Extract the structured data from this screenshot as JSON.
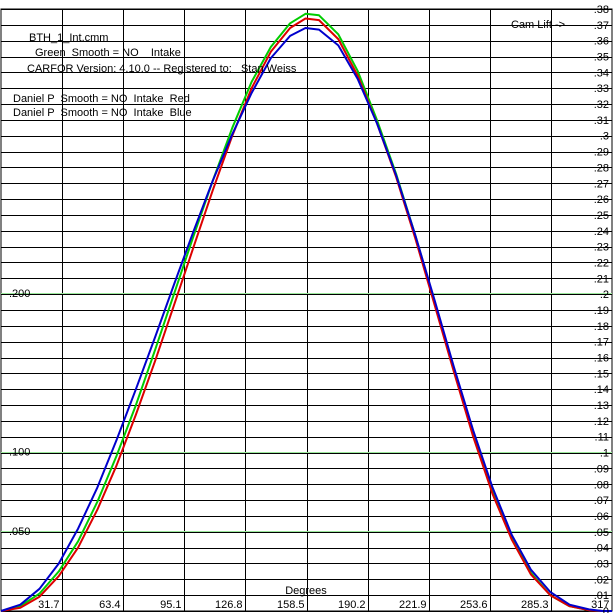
{
  "chart_data": {
    "type": "line",
    "xlabel": "Degrees",
    "right_axis_label": "Cam Lift ->",
    "x_tick_labels": [
      "31.7",
      "63.4",
      "95.1",
      "126.8",
      "158.5",
      "190.2",
      "221.9",
      "253.6",
      "285.3",
      "317"
    ],
    "xlim": [
      0,
      317
    ],
    "ylim": [
      0,
      0.38
    ],
    "right_ticks": [
      "0",
      ".01",
      ".02",
      ".03",
      ".04",
      ".05",
      ".06",
      ".07",
      ".08",
      ".09",
      ".1",
      ".11",
      ".12",
      ".13",
      ".14",
      ".15",
      ".16",
      ".17",
      ".18",
      ".19",
      ".2",
      ".21",
      ".22",
      ".23",
      ".24",
      ".25",
      ".26",
      ".27",
      ".28",
      ".29",
      ".3",
      ".31",
      ".32",
      ".33",
      ".34",
      ".35",
      ".36",
      ".37",
      ".38"
    ],
    "left_ticks": [
      {
        "value": 0.05,
        "label": ".050"
      },
      {
        "value": 0.1,
        "label": ".100"
      },
      {
        "value": 0.2,
        "label": ".200"
      }
    ],
    "grid": true,
    "info_lines": [
      "BTH_1_Int.cmm",
      "Green  Smooth = NO    Intake",
      "CARFOR Version: 4.10.0 -- Registered to:   Stan Weiss",
      "",
      "Daniel P  Smooth = NO  Intake  Red",
      "Daniel P  Smooth = NO  Intake  Blue"
    ],
    "series": [
      {
        "color": "#00cc00",
        "x": [
          0,
          10,
          20,
          30,
          40,
          50,
          60,
          70,
          80,
          90,
          100,
          110,
          120,
          130,
          140,
          150,
          158,
          165,
          175,
          185,
          195,
          205,
          215,
          225,
          235,
          245,
          255,
          265,
          275,
          285,
          295,
          305,
          312,
          317
        ],
        "y": [
          0,
          0.003,
          0.011,
          0.025,
          0.044,
          0.069,
          0.098,
          0.13,
          0.165,
          0.201,
          0.237,
          0.272,
          0.305,
          0.334,
          0.356,
          0.371,
          0.377,
          0.376,
          0.364,
          0.341,
          0.31,
          0.276,
          0.237,
          0.195,
          0.153,
          0.112,
          0.076,
          0.046,
          0.024,
          0.01,
          0.003,
          0.0005,
          0,
          0
        ]
      },
      {
        "color": "#dd0000",
        "x": [
          0,
          10,
          20,
          30,
          40,
          50,
          60,
          70,
          80,
          90,
          100,
          110,
          120,
          130,
          140,
          150,
          158,
          165,
          175,
          185,
          195,
          205,
          215,
          225,
          235,
          245,
          255,
          265,
          275,
          285,
          295,
          305,
          312,
          317
        ],
        "y": [
          0,
          0.002,
          0.009,
          0.022,
          0.04,
          0.064,
          0.092,
          0.124,
          0.158,
          0.194,
          0.23,
          0.266,
          0.3,
          0.33,
          0.353,
          0.368,
          0.374,
          0.373,
          0.361,
          0.338,
          0.308,
          0.274,
          0.235,
          0.193,
          0.151,
          0.11,
          0.074,
          0.045,
          0.023,
          0.01,
          0.003,
          0.0005,
          0,
          0
        ]
      },
      {
        "color": "#0000cc",
        "x": [
          0,
          10,
          20,
          30,
          40,
          50,
          60,
          70,
          80,
          90,
          100,
          110,
          120,
          130,
          140,
          150,
          158,
          165,
          175,
          185,
          195,
          205,
          215,
          225,
          235,
          245,
          255,
          265,
          275,
          285,
          295,
          305,
          312,
          317
        ],
        "y": [
          0,
          0.004,
          0.014,
          0.03,
          0.052,
          0.078,
          0.108,
          0.14,
          0.173,
          0.207,
          0.24,
          0.272,
          0.301,
          0.327,
          0.349,
          0.363,
          0.368,
          0.367,
          0.357,
          0.336,
          0.308,
          0.275,
          0.237,
          0.196,
          0.154,
          0.114,
          0.078,
          0.048,
          0.026,
          0.012,
          0.004,
          0.001,
          0,
          0
        ]
      }
    ]
  }
}
